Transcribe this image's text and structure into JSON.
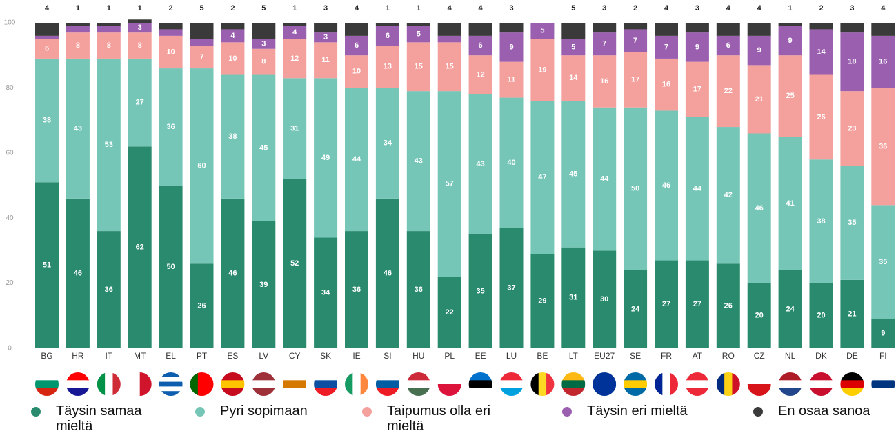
{
  "chart_data": {
    "type": "stacked-bar",
    "categories": [
      "BG",
      "HR",
      "IT",
      "MT",
      "EL",
      "PT",
      "ES",
      "LV",
      "CY",
      "SK",
      "IE",
      "SI",
      "HU",
      "PL",
      "EE",
      "LU",
      "BE",
      "LT",
      "EU27",
      "SE",
      "FR",
      "AT",
      "RO",
      "CZ",
      "NL",
      "DK",
      "DE",
      "FI"
    ],
    "series": [
      {
        "name": "Täysin samaa mieltä",
        "color": "#2a8a6e",
        "values": [
          51,
          46,
          36,
          62,
          50,
          26,
          46,
          39,
          52,
          34,
          36,
          46,
          36,
          22,
          35,
          37,
          29,
          31,
          30,
          24,
          27,
          27,
          26,
          20,
          24,
          20,
          21,
          9
        ]
      },
      {
        "name": "Pyri sopimaan",
        "color": "#76c6b8",
        "values": [
          38,
          43,
          53,
          27,
          36,
          60,
          38,
          45,
          31,
          49,
          44,
          34,
          43,
          57,
          43,
          40,
          47,
          45,
          44,
          50,
          46,
          44,
          42,
          46,
          41,
          38,
          35,
          35
        ]
      },
      {
        "name": "Taipumus olla eri mieltä",
        "color": "#f4a09c",
        "values": [
          6,
          8,
          8,
          8,
          10,
          7,
          10,
          8,
          12,
          11,
          10,
          13,
          15,
          15,
          12,
          11,
          19,
          14,
          16,
          17,
          16,
          17,
          22,
          21,
          25,
          26,
          23,
          36
        ]
      },
      {
        "name": "Täysin eri mieltä",
        "color": "#9b5fb0",
        "values": [
          1,
          2,
          2,
          3,
          2,
          2,
          4,
          3,
          4,
          3,
          6,
          6,
          5,
          2,
          6,
          9,
          5,
          5,
          7,
          7,
          7,
          9,
          6,
          9,
          9,
          14,
          18,
          16
        ]
      },
      {
        "name": "En osaa sanoa",
        "color": "#3a3a3a",
        "values": [
          4,
          1,
          1,
          1,
          2,
          5,
          2,
          5,
          1,
          3,
          4,
          1,
          1,
          4,
          4,
          3,
          0,
          5,
          3,
          2,
          4,
          3,
          4,
          4,
          1,
          2,
          3,
          4
        ]
      }
    ],
    "ylim": [
      0,
      100
    ],
    "yticks": [
      0,
      20,
      40,
      60,
      80,
      100
    ],
    "grid": false,
    "legend": "bottom"
  }
}
